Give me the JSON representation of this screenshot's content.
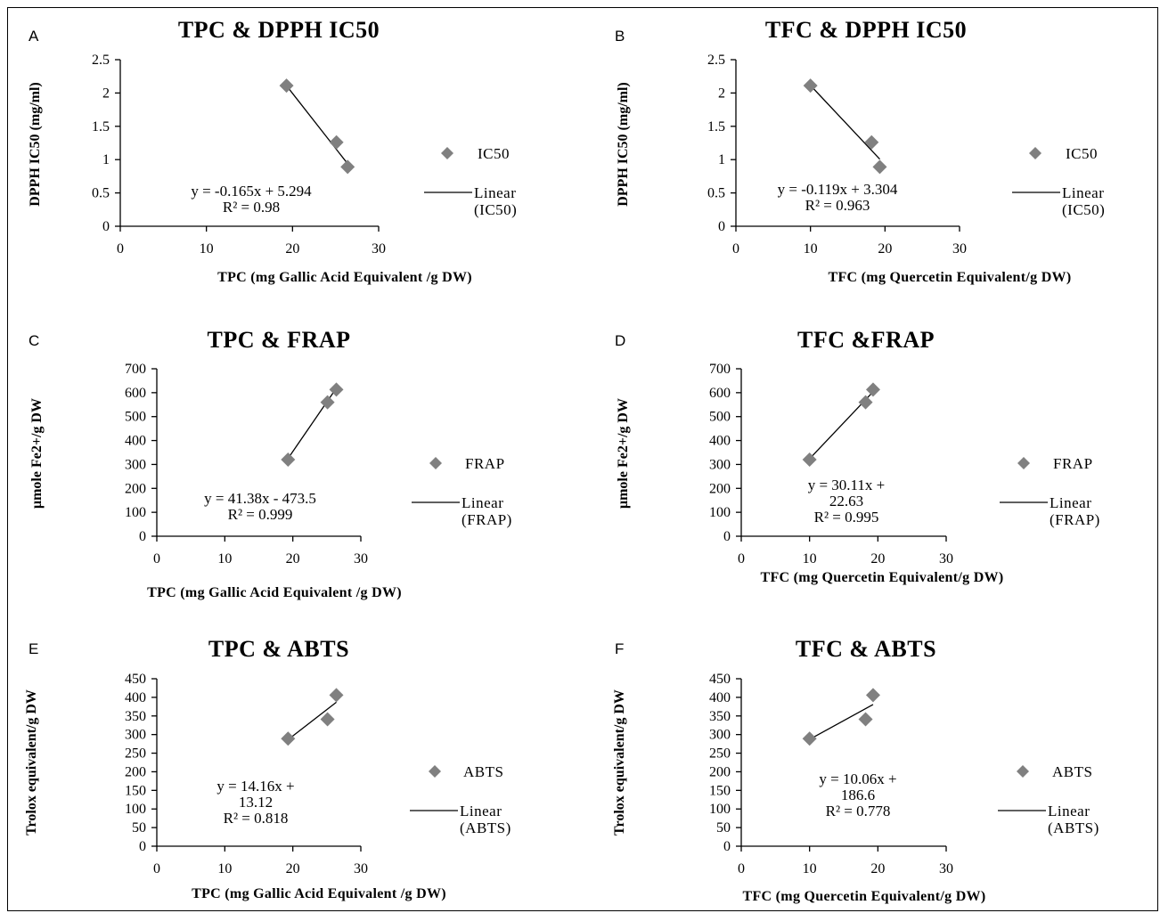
{
  "chart_data": [
    {
      "type": "scatter",
      "panel": "A",
      "title": "TPC & DPPH IC50",
      "xlabel": "TPC (mg Gallic Acid Equivalent /g DW)",
      "ylabel": "DPPH IC50 (mg/ml)",
      "xlim": [
        0,
        30
      ],
      "ylim": [
        0,
        2.5
      ],
      "xticks": [
        "0",
        "10",
        "20",
        "30"
      ],
      "yticks": [
        "0",
        "0.5",
        "1",
        "1.5",
        "2",
        "2.5"
      ],
      "series": [
        {
          "name": "IC50",
          "points": [
            {
              "x": 19.3,
              "y": 2.11
            },
            {
              "x": 25.1,
              "y": 1.26
            },
            {
              "x": 26.4,
              "y": 0.89
            }
          ]
        }
      ],
      "trendline": {
        "slope": -0.165,
        "intercept": 5.294,
        "x_range": [
          19.3,
          26.4
        ]
      },
      "equation_lines": [
        "y = -0.165x + 5.294",
        "R² = 0.98"
      ],
      "legend": [
        "IC50",
        "Linear",
        "(IC50)"
      ]
    },
    {
      "type": "scatter",
      "panel": "B",
      "title": "TFC & DPPH IC50",
      "xlabel": "TFC (mg Quercetin Equivalent/g DW)",
      "ylabel": "DPPH IC50 (mg/ml)",
      "xlim": [
        0,
        30
      ],
      "ylim": [
        0,
        2.5
      ],
      "xticks": [
        "0",
        "10",
        "20",
        "30"
      ],
      "yticks": [
        "0",
        "0.5",
        "1",
        "1.5",
        "2",
        "2.5"
      ],
      "series": [
        {
          "name": "IC50",
          "points": [
            {
              "x": 10.0,
              "y": 2.11
            },
            {
              "x": 18.2,
              "y": 1.26
            },
            {
              "x": 19.3,
              "y": 0.89
            }
          ]
        }
      ],
      "trendline": {
        "slope": -0.119,
        "intercept": 3.304,
        "x_range": [
          10.0,
          19.3
        ]
      },
      "equation_lines": [
        "y = -0.119x + 3.304",
        "R² = 0.963"
      ],
      "legend": [
        "IC50",
        "Linear",
        "(IC50)"
      ]
    },
    {
      "type": "scatter",
      "panel": "C",
      "title": "TPC & FRAP",
      "xlabel": "TPC (mg Gallic Acid Equivalent /g DW)",
      "ylabel": "μmole Fe2+/g DW",
      "xlim": [
        0,
        30
      ],
      "ylim": [
        0,
        700
      ],
      "xticks": [
        "0",
        "10",
        "20",
        "30"
      ],
      "yticks": [
        "0",
        "100",
        "200",
        "300",
        "400",
        "500",
        "600",
        "700"
      ],
      "series": [
        {
          "name": "FRAP",
          "points": [
            {
              "x": 19.3,
              "y": 320
            },
            {
              "x": 25.1,
              "y": 560
            },
            {
              "x": 26.4,
              "y": 613
            }
          ]
        }
      ],
      "trendline": {
        "slope": 41.38,
        "intercept": -473.5,
        "x_range": [
          19.3,
          26.4
        ]
      },
      "equation_lines": [
        "y = 41.38x - 473.5",
        "R² = 0.999"
      ],
      "legend": [
        "FRAP",
        "Linear",
        "(FRAP)"
      ]
    },
    {
      "type": "scatter",
      "panel": "D",
      "title": "TFC &FRAP",
      "xlabel": "TFC (mg Quercetin Equivalent/g DW)",
      "ylabel": "μmole Fe2+/g DW",
      "xlim": [
        0,
        30
      ],
      "ylim": [
        0,
        700
      ],
      "xticks": [
        "0",
        "10",
        "20",
        "30"
      ],
      "yticks": [
        "0",
        "100",
        "200",
        "300",
        "400",
        "500",
        "600",
        "700"
      ],
      "series": [
        {
          "name": "FRAP",
          "points": [
            {
              "x": 10.0,
              "y": 320
            },
            {
              "x": 18.2,
              "y": 560
            },
            {
              "x": 19.3,
              "y": 613
            }
          ]
        }
      ],
      "trendline": {
        "slope": 30.11,
        "intercept": 22.63,
        "x_range": [
          10.0,
          19.3
        ]
      },
      "equation_lines": [
        "y = 30.11x +",
        "22.63",
        "R² = 0.995"
      ],
      "legend": [
        "FRAP",
        "Linear",
        "(FRAP)"
      ]
    },
    {
      "type": "scatter",
      "panel": "E",
      "title": "TPC & ABTS",
      "xlabel": "TPC (mg Gallic Acid Equivalent /g DW)",
      "ylabel": "Trolox equivalent/g DW",
      "xlim": [
        0,
        30
      ],
      "ylim": [
        0,
        450
      ],
      "xticks": [
        "0",
        "10",
        "20",
        "30"
      ],
      "yticks": [
        "0",
        "50",
        "100",
        "150",
        "200",
        "250",
        "300",
        "350",
        "400",
        "450"
      ],
      "series": [
        {
          "name": "ABTS",
          "points": [
            {
              "x": 19.3,
              "y": 289
            },
            {
              "x": 25.1,
              "y": 341
            },
            {
              "x": 26.4,
              "y": 406
            }
          ]
        }
      ],
      "trendline": {
        "slope": 14.16,
        "intercept": 13.12,
        "x_range": [
          19.3,
          26.4
        ]
      },
      "equation_lines": [
        "y = 14.16x +",
        "13.12",
        "R² = 0.818"
      ],
      "legend": [
        "ABTS",
        "Linear",
        "(ABTS)"
      ]
    },
    {
      "type": "scatter",
      "panel": "F",
      "title": "TFC & ABTS",
      "xlabel": "TFC (mg Quercetin Equivalent/g DW)",
      "ylabel": "Trolox equivalent/g DW",
      "xlim": [
        0,
        30
      ],
      "ylim": [
        0,
        450
      ],
      "xticks": [
        "0",
        "10",
        "20",
        "30"
      ],
      "yticks": [
        "0",
        "50",
        "100",
        "150",
        "200",
        "250",
        "300",
        "350",
        "400",
        "450"
      ],
      "series": [
        {
          "name": "ABTS",
          "points": [
            {
              "x": 10.0,
              "y": 289
            },
            {
              "x": 18.2,
              "y": 341
            },
            {
              "x": 19.3,
              "y": 406
            }
          ]
        }
      ],
      "trendline": {
        "slope": 10.06,
        "intercept": 186.6,
        "x_range": [
          10.0,
          19.3
        ]
      },
      "equation_lines": [
        "y = 10.06x +",
        "186.6",
        "R² = 0.778"
      ],
      "legend": [
        "ABTS",
        "Linear",
        "(ABTS)"
      ]
    }
  ],
  "colors": {
    "marker": "#808080",
    "line": "#000000",
    "background": "#ffffff"
  },
  "marker_shape": "diamond-icon"
}
